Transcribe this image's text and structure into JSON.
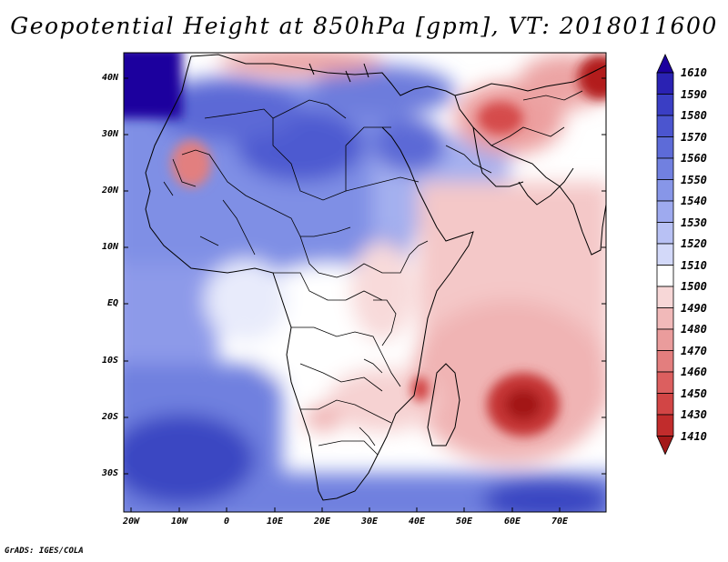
{
  "title": "Geopotential Height at 850hPa [gpm], VT: 2018011600",
  "credit": "GrADS: IGES/COLA",
  "y_axis_labels": [
    "40N",
    "30N",
    "20N",
    "10N",
    "EQ",
    "10S",
    "20S",
    "30S"
  ],
  "x_axis_labels": [
    "20W",
    "10W",
    "0",
    "10E",
    "20E",
    "30E",
    "40E",
    "50E",
    "60E",
    "70E"
  ],
  "colorbar_levels": [
    "1610",
    "1590",
    "1580",
    "1570",
    "1560",
    "1550",
    "1540",
    "1530",
    "1520",
    "1510",
    "1500",
    "1490",
    "1480",
    "1470",
    "1460",
    "1450",
    "1430",
    "1410"
  ],
  "colorbar_colors": [
    "#1c009e",
    "#2a22b3",
    "#3a3ec4",
    "#4b55cf",
    "#5d6bd8",
    "#7180e0",
    "#8796e8",
    "#9eaaef",
    "#b8c1f4",
    "#d3d9f9",
    "#ffffff",
    "#f7d7d7",
    "#f1b9b9",
    "#ea9c9c",
    "#e37e7e",
    "#dc5f5f",
    "#d24545",
    "#c12c2c",
    "#a31818"
  ],
  "colors": {
    "low": "#a31818",
    "high": "#1c009e",
    "neutral": "#ffffff"
  }
}
